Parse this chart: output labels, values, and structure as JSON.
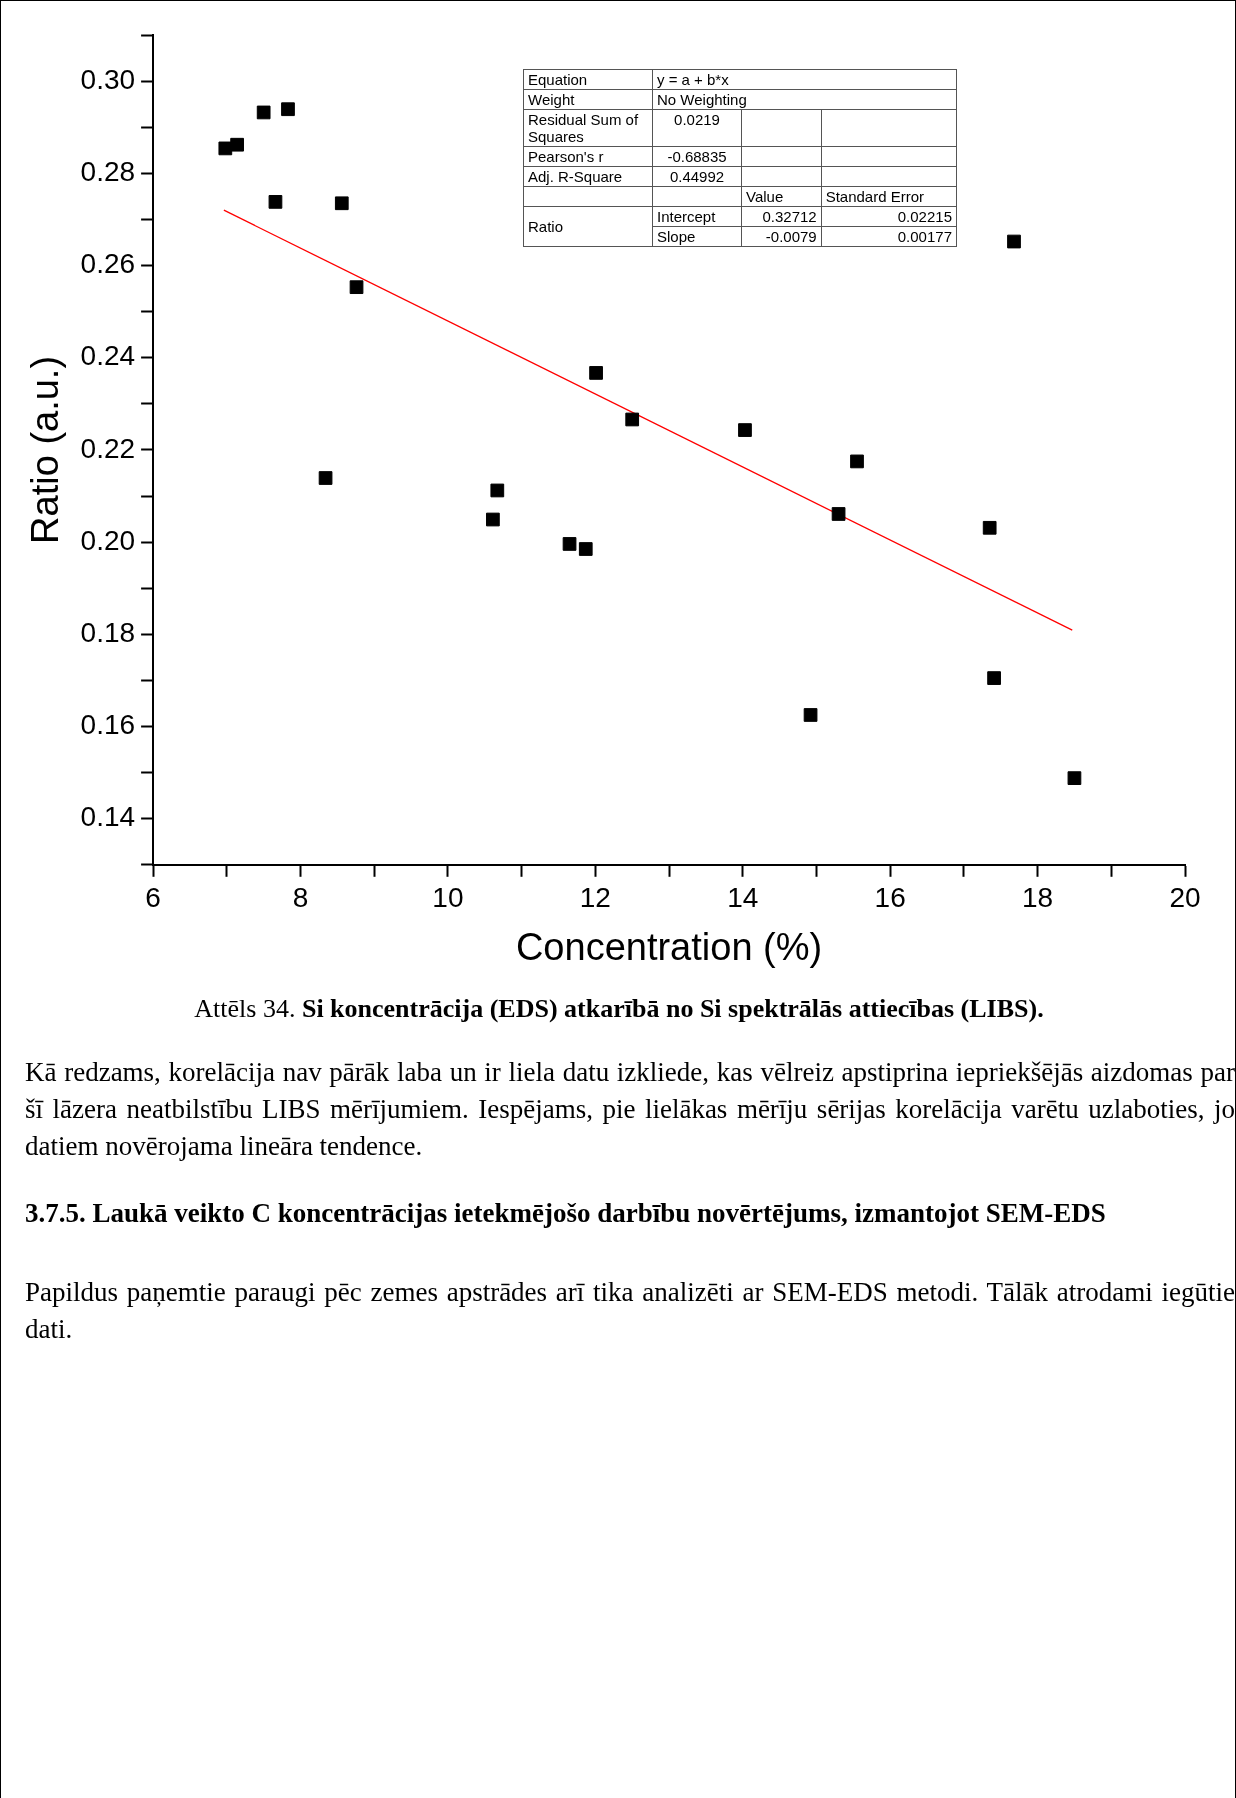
{
  "chart_data": {
    "type": "scatter",
    "title": "Attēls 34. Si koncentrācija (EDS) atkarībā no Si spektrālās attiecības (LIBS).",
    "xlabel": "Concentration (%)",
    "ylabel": "Ratio (a.u.)",
    "xlim": [
      6,
      20
    ],
    "xticks": [
      6,
      {
        "value": 7,
        "label": null
      },
      8,
      {
        "value": 9,
        "label": null
      },
      10,
      {
        "value": 11,
        "label": null
      },
      12,
      {
        "value": 13,
        "label": null
      },
      14,
      {
        "value": 15,
        "label": null
      },
      16,
      {
        "value": 17,
        "label": null
      },
      18,
      {
        "value": 19,
        "label": null
      },
      20
    ],
    "ylim": [
      0.13,
      0.31
    ],
    "yticks": [
      {
        "value": 0.13,
        "label": null
      },
      {
        "value": 0.14,
        "label": "0.14"
      },
      {
        "value": 0.15,
        "label": null
      },
      {
        "value": 0.16,
        "label": "0.16"
      },
      {
        "value": 0.17,
        "label": null
      },
      {
        "value": 0.18,
        "label": "0.18"
      },
      {
        "value": 0.19,
        "label": null
      },
      {
        "value": 0.2,
        "label": "0.20"
      },
      {
        "value": 0.21,
        "label": null
      },
      {
        "value": 0.22,
        "label": "0.22"
      },
      {
        "value": 0.23,
        "label": null
      },
      {
        "value": 0.24,
        "label": "0.24"
      },
      {
        "value": 0.25,
        "label": null
      },
      {
        "value": 0.26,
        "label": "0.26"
      },
      {
        "value": 0.27,
        "label": null
      },
      {
        "value": 0.28,
        "label": "0.28"
      },
      {
        "value": 0.29,
        "label": null
      },
      {
        "value": 0.3,
        "label": "0.30"
      },
      {
        "value": 0.31,
        "label": null
      }
    ],
    "grid": false,
    "legend": false,
    "series": [
      {
        "type": "scatter",
        "color": "#000000",
        "marker": "square",
        "x": [
          6.98,
          7.14,
          7.5,
          7.83,
          7.66,
          8.56,
          8.76,
          8.34,
          10.61,
          10.67,
          11.65,
          11.87,
          12.01,
          12.5,
          14.03,
          14.92,
          15.3,
          15.55,
          17.35,
          17.41,
          17.68,
          18.5
        ],
        "values": [
          0.2854,
          0.2862,
          0.2932,
          0.2939,
          0.2738,
          0.2735,
          0.2553,
          0.2139,
          0.2049,
          0.2112,
          0.1996,
          0.1985,
          0.2367,
          0.2266,
          0.2243,
          0.1625,
          0.2061,
          0.2175,
          0.2031,
          0.1705,
          0.2652,
          0.1488
        ]
      },
      {
        "type": "line",
        "color": "#ff0000",
        "marker": "none",
        "x": [
          6.96,
          18.47
        ],
        "values": [
          0.272,
          0.1809
        ]
      }
    ],
    "annotations": [
      "Equation",
      "y = a + b*x",
      "Weight",
      "No Weighting",
      "Residual Sum of Squares",
      "0.0219",
      "Pearson's r",
      "-0.68835",
      "Adj. R-Square",
      "0.44992",
      "Value",
      "Standard Error",
      "Ratio",
      "Intercept",
      "0.32712",
      "0.02215",
      "Slope",
      "-0.0079",
      "0.00177",
      "Kā redzams, korelācija nav pārāk laba un ir liela datu izkliede, kas vēlreiz apstiprina iepriekšējās aizdomas par šī lāzera neatbilstību LIBS mērījumiem. Iespējams, pie lielākas mērīju sērijas korelācija varētu uzlaboties, jo datiem novērojama lineāra tendence.",
      "3.7.5. Laukā veikto C koncentrācijas ietekmējošo darbību novērtējums, izmantojot SEM-EDS",
      "Papildus paņemtie paraugi pēc zemes apstrādes arī tika analizēti ar SEM-EDS metodi. Tālāk atrodami iegūtie dati."
    ]
  }
}
